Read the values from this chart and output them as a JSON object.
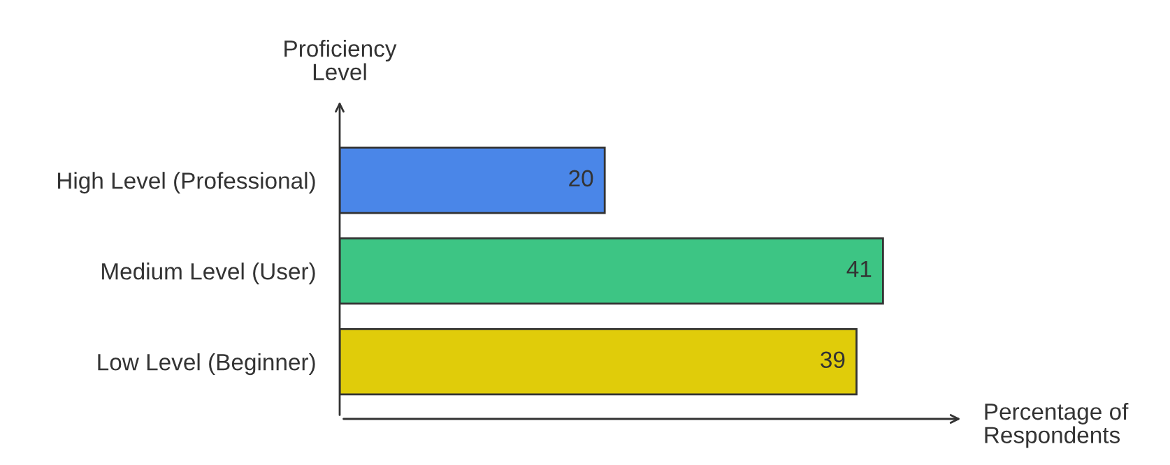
{
  "chart_data": {
    "type": "bar",
    "orientation": "horizontal",
    "xlabel": "Percentage of\nRespondents",
    "ylabel": "Proficiency\nLevel",
    "categories": [
      "High Level (Professional)",
      "Medium Level (User)",
      "Low Level (Beginner)"
    ],
    "values": [
      20,
      41,
      39
    ],
    "colors": [
      "#4a86e8",
      "#3dc584",
      "#e0cc0a"
    ],
    "data_labels": true,
    "grid": false,
    "legend": false
  }
}
